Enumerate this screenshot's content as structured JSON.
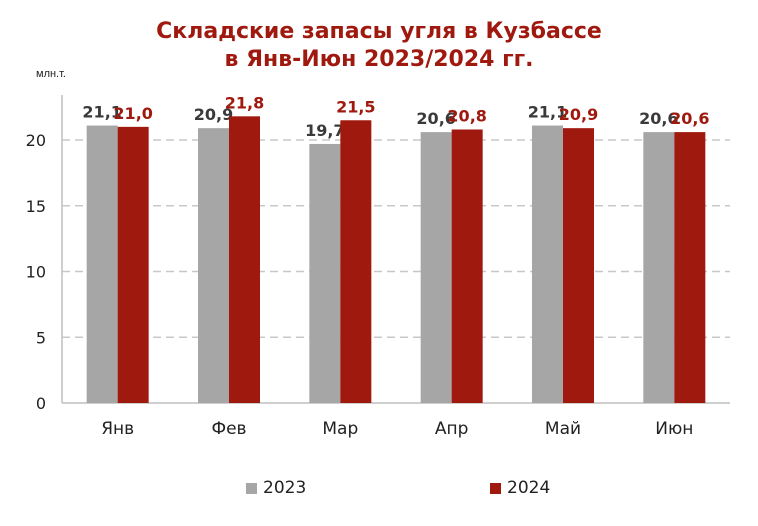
{
  "chart_data": {
    "type": "bar",
    "title_line1": "Складские запасы угля в Кузбассе",
    "title_line2": "в Янв-Июн 2023/2024 гг.",
    "unit_label": "млн.т.",
    "categories": [
      "Янв",
      "Фев",
      "Мар",
      "Апр",
      "Май",
      "Июн"
    ],
    "series": [
      {
        "name": "2023",
        "values": [
          21.1,
          20.9,
          19.7,
          20.6,
          21.1,
          20.6
        ],
        "labels": [
          "21,1",
          "20,9",
          "19,7",
          "20,6",
          "21,1",
          "20,6"
        ],
        "color": "#a6a6a6",
        "label_color": "#3a3a3a"
      },
      {
        "name": "2024",
        "values": [
          21.0,
          21.8,
          21.5,
          20.8,
          20.9,
          20.6
        ],
        "labels": [
          "21,0",
          "21,8",
          "21,5",
          "20,8",
          "20,9",
          "20,6"
        ],
        "color": "#a0190f",
        "label_color": "#a0190f"
      }
    ],
    "ylim": [
      0,
      20
    ],
    "yticks": [
      "0",
      "5",
      "10",
      "15",
      "20"
    ],
    "grid": true,
    "legend_position": "bottom"
  }
}
